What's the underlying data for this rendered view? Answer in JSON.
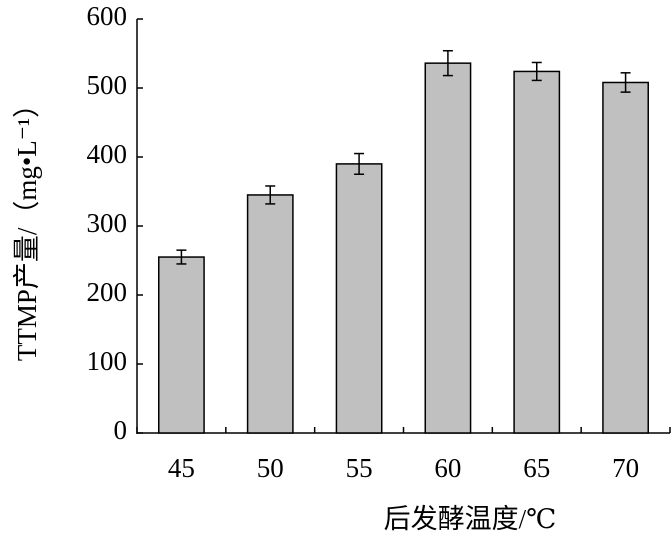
{
  "chart_data": {
    "type": "bar",
    "x_label": "后发酵温度/℃",
    "y_label": "TTMP产量/（mg•L⁻¹）",
    "categories": [
      "45",
      "50",
      "55",
      "60",
      "65",
      "70"
    ],
    "values": [
      255,
      345,
      390,
      536,
      524,
      508
    ],
    "errors": [
      10,
      13,
      15,
      18,
      13,
      14
    ],
    "color": "#c0c0c0",
    "ylim": [
      0,
      600
    ],
    "yticks": [
      0,
      100,
      200,
      300,
      400,
      500,
      600
    ],
    "grid": false
  }
}
